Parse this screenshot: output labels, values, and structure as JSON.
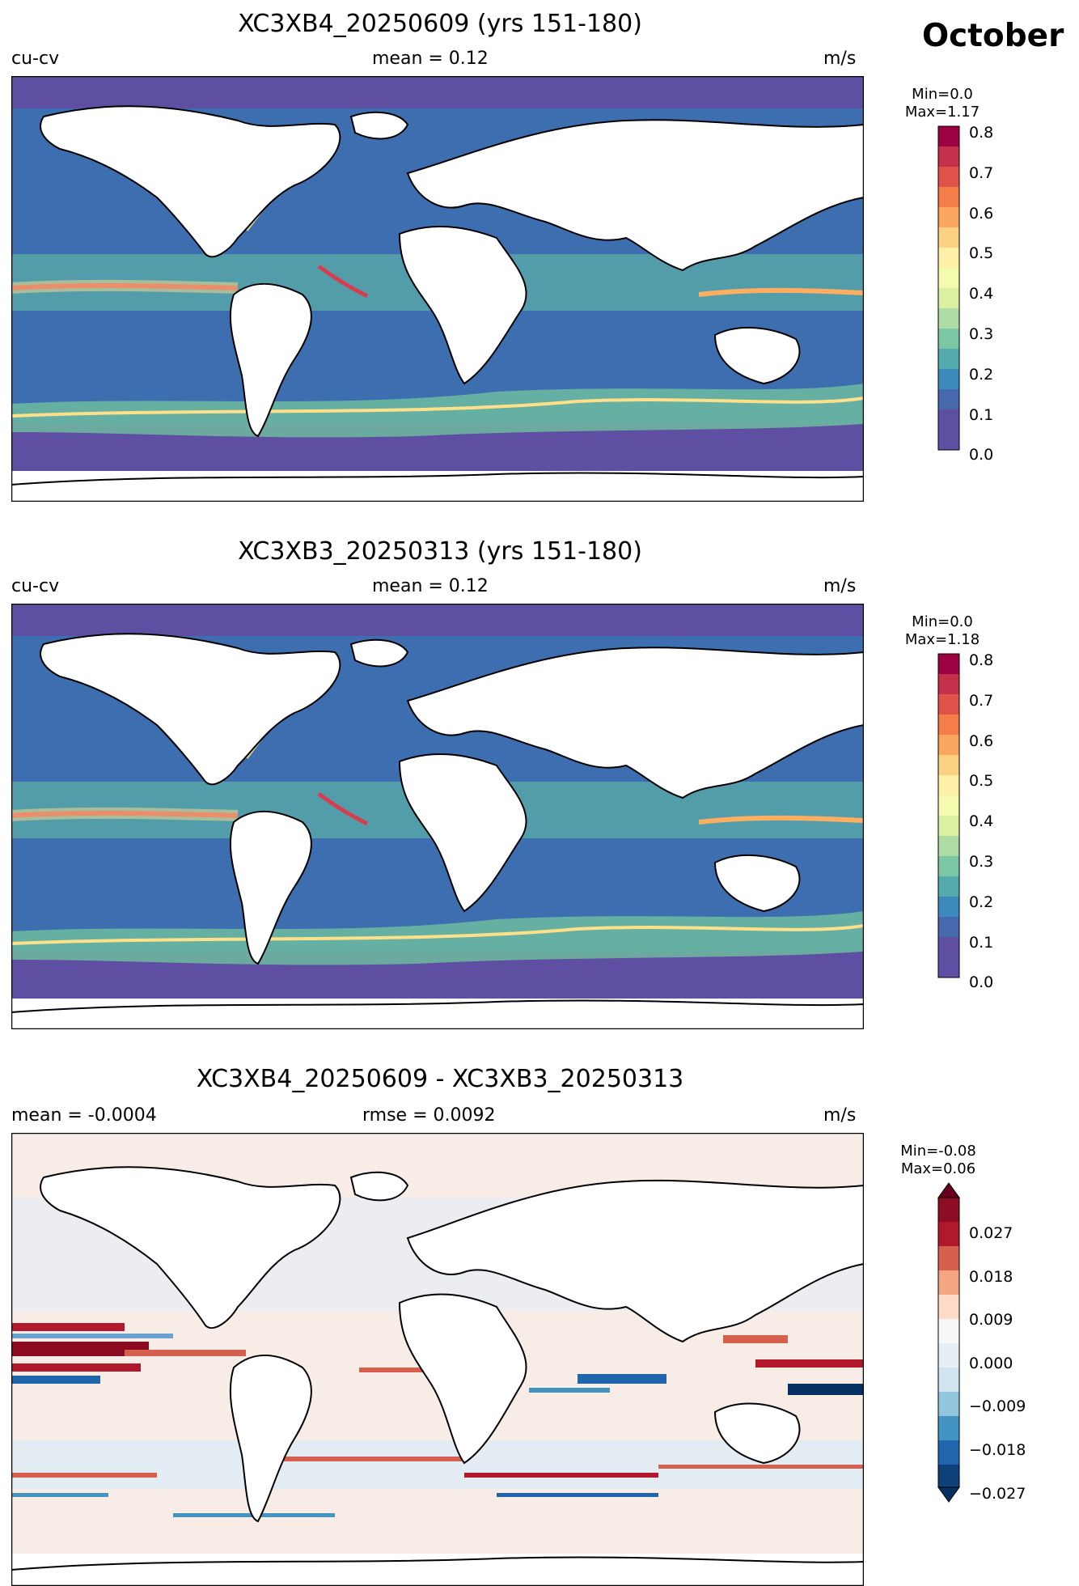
{
  "month": "October",
  "panels": [
    {
      "title": "XC3XB4_20250609 (yrs 151-180)",
      "left_label": "cu-cv",
      "center_label": "mean = 0.12",
      "right_label": "m/s",
      "cbar_min": "Min=0.0",
      "cbar_max": "Max=1.17",
      "cbar_ticks": [
        "0.8",
        "0.7",
        "0.6",
        "0.5",
        "0.4",
        "0.3",
        "0.2",
        "0.1",
        "0.0"
      ]
    },
    {
      "title": "XC3XB3_20250313 (yrs 151-180)",
      "left_label": "cu-cv",
      "center_label": "mean = 0.12",
      "right_label": "m/s",
      "cbar_min": "Min=0.0",
      "cbar_max": "Max=1.18",
      "cbar_ticks": [
        "0.8",
        "0.7",
        "0.6",
        "0.5",
        "0.4",
        "0.3",
        "0.2",
        "0.1",
        "0.0"
      ]
    },
    {
      "title": "XC3XB4_20250609 - XC3XB3_20250313",
      "left_label": "mean = -0.0004",
      "center_label": "rmse = 0.0092",
      "right_label": "m/s",
      "cbar_min": "Min=-0.08",
      "cbar_max": "Max=0.06",
      "cbar_ticks": [
        "0.027",
        "0.018",
        "0.009",
        "0.000",
        "−0.009",
        "−0.018",
        "−0.027"
      ]
    }
  ],
  "colors": {
    "ocean_low": "#5e4fa2",
    "ocean_mid": "#3a7bb8",
    "current_green": "#66c2a5",
    "current_yellow": "#fee08b",
    "current_red": "#d53e4f",
    "diff_pos": "#b2182b",
    "diff_neg": "#2166ac",
    "diff_zero": "#f7f7f7"
  }
}
